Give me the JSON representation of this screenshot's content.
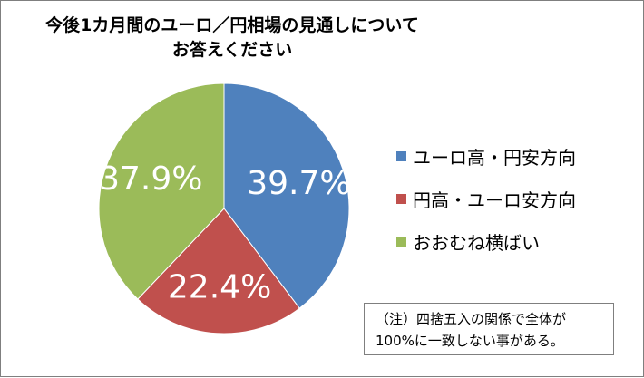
{
  "chart_data": {
    "type": "pie",
    "title": [
      "今後1カ月間のユーロ／円相場の見通しについて",
      "お答えください"
    ],
    "categories": [
      "ユーロ高・円安方向",
      "円高・ユーロ安方向",
      "おおむね横ばい"
    ],
    "values": [
      39.7,
      22.4,
      37.9
    ],
    "labels": [
      "39.7%",
      "22.4%",
      "37.9%"
    ],
    "colors": [
      "#4f81bd",
      "#c0504d",
      "#9bbb59"
    ],
    "legend_position": "right",
    "start_angle": "12 o'clock",
    "direction": "clockwise"
  },
  "note": {
    "lines": [
      "（注）四捨五入の関係で全体が",
      "100%に一致しない事がある。"
    ]
  }
}
